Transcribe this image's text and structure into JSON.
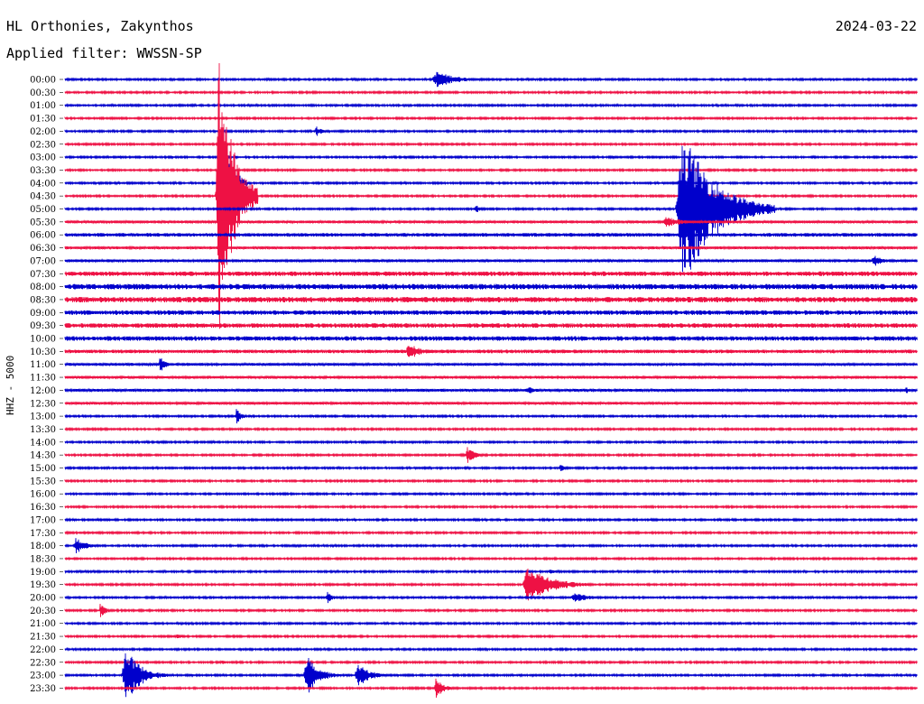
{
  "header": {
    "station": "HL Orthonies, Zakynthos",
    "filter": "Applied filter: WWSSN-SP",
    "date": "2024-03-22"
  },
  "channel_label": "HHZ - 5000",
  "colors": {
    "even_trace": "#0000cc",
    "odd_trace": "#ee1144"
  },
  "chart_data": {
    "type": "line",
    "title": "HL Orthonies, Zakynthos",
    "subtitle": "Applied filter: WWSSN-SP",
    "ylabel": "HHZ - 5000",
    "xlim": [
      0,
      30
    ],
    "x_unit": "minutes past each trace start",
    "y_tick_labels": [
      "00:00",
      "00:30",
      "01:00",
      "01:30",
      "02:00",
      "02:30",
      "03:00",
      "03:30",
      "04:00",
      "04:30",
      "05:00",
      "05:30",
      "06:00",
      "06:30",
      "07:00",
      "07:30",
      "08:00",
      "08:30",
      "09:00",
      "09:30",
      "10:00",
      "10:30",
      "11:00",
      "11:30",
      "12:00",
      "12:30",
      "13:00",
      "13:30",
      "14:00",
      "14:30",
      "15:00",
      "15:30",
      "16:00",
      "16:30",
      "17:00",
      "17:30",
      "18:00",
      "18:30",
      "19:00",
      "19:30",
      "20:00",
      "20:30",
      "21:00",
      "21:30",
      "22:00",
      "22:30",
      "23:00",
      "23:30"
    ],
    "noise_level": [
      1,
      1,
      1,
      1,
      1,
      1,
      1,
      1,
      1,
      1,
      1,
      1.5,
      2,
      1.5,
      1.5,
      2.5,
      3,
      3,
      2.5,
      2.5,
      2.5,
      2,
      1.5,
      1.5,
      1.5,
      1.5,
      1,
      1,
      1,
      1,
      1,
      1,
      1,
      1,
      1,
      1,
      1,
      1,
      1,
      1,
      1,
      1,
      1,
      1,
      1,
      1,
      1,
      1
    ],
    "events": [
      {
        "trace": 0,
        "start_min": 12.9,
        "amplitude": 9,
        "duration_min": 2.3
      },
      {
        "trace": 0,
        "start_min": 23.2,
        "amplitude": 2,
        "duration_min": 0.5
      },
      {
        "trace": 4,
        "start_min": 8.8,
        "amplitude": 6,
        "duration_min": 0.6
      },
      {
        "trace": 8,
        "start_min": 5.5,
        "amplitude": 70,
        "duration_min": 0.9
      },
      {
        "trace": 9,
        "start_min": 5.3,
        "amplitude": 160,
        "duration_min": 1.5
      },
      {
        "trace": 10,
        "start_min": 14.4,
        "amplitude": 5,
        "duration_min": 0.6
      },
      {
        "trace": 10,
        "start_min": 21.5,
        "amplitude": 85,
        "duration_min": 3.5
      },
      {
        "trace": 11,
        "start_min": 21.0,
        "amplitude": 6,
        "duration_min": 2.0
      },
      {
        "trace": 14,
        "start_min": 28.4,
        "amplitude": 7,
        "duration_min": 1.0
      },
      {
        "trace": 21,
        "start_min": 12.0,
        "amplitude": 10,
        "duration_min": 1.3
      },
      {
        "trace": 22,
        "start_min": 3.3,
        "amplitude": 9,
        "duration_min": 0.6
      },
      {
        "trace": 24,
        "start_min": 16.2,
        "amplitude": 5,
        "duration_min": 1.0
      },
      {
        "trace": 24,
        "start_min": 29.6,
        "amplitude": 5,
        "duration_min": 0.3
      },
      {
        "trace": 26,
        "start_min": 6.0,
        "amplitude": 9,
        "duration_min": 0.5
      },
      {
        "trace": 29,
        "start_min": 14.1,
        "amplitude": 9,
        "duration_min": 0.9
      },
      {
        "trace": 30,
        "start_min": 17.4,
        "amplitude": 4,
        "duration_min": 0.6
      },
      {
        "trace": 36,
        "start_min": 0.3,
        "amplitude": 10,
        "duration_min": 1.0
      },
      {
        "trace": 38,
        "start_min": 17.0,
        "amplitude": 3,
        "duration_min": 1.0
      },
      {
        "trace": 39,
        "start_min": 16.1,
        "amplitude": 22,
        "duration_min": 2.5
      },
      {
        "trace": 40,
        "start_min": 9.2,
        "amplitude": 7,
        "duration_min": 0.6
      },
      {
        "trace": 40,
        "start_min": 17.8,
        "amplitude": 5,
        "duration_min": 1.8
      },
      {
        "trace": 41,
        "start_min": 1.2,
        "amplitude": 9,
        "duration_min": 0.6
      },
      {
        "trace": 43,
        "start_min": 3.9,
        "amplitude": 4,
        "duration_min": 0.6
      },
      {
        "trace": 45,
        "start_min": 5.5,
        "amplitude": 4,
        "duration_min": 0.3
      },
      {
        "trace": 46,
        "start_min": 2.0,
        "amplitude": 32,
        "duration_min": 1.6
      },
      {
        "trace": 46,
        "start_min": 8.4,
        "amplitude": 24,
        "duration_min": 1.3
      },
      {
        "trace": 46,
        "start_min": 10.2,
        "amplitude": 13,
        "duration_min": 1.4
      },
      {
        "trace": 47,
        "start_min": 13.0,
        "amplitude": 13,
        "duration_min": 0.8
      }
    ]
  }
}
